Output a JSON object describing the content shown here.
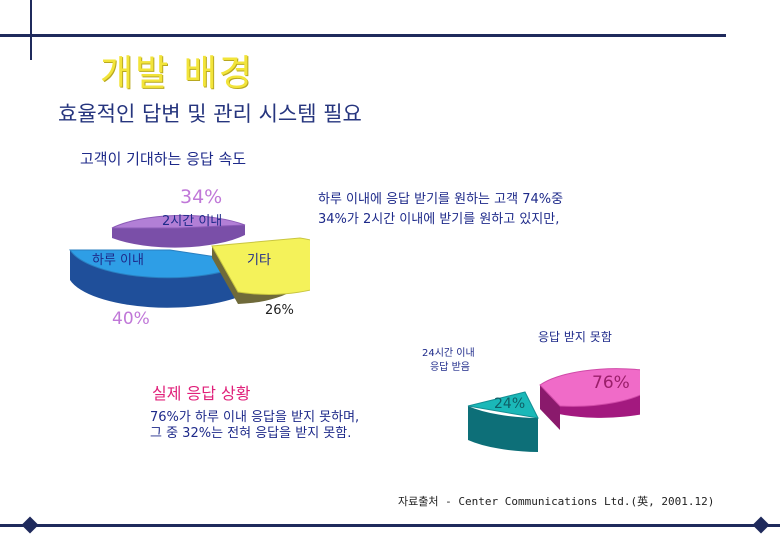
{
  "slide": {
    "title": "개발 배경",
    "subtitle": "효율적인 답변 및 관리 시스템 필요",
    "section1": "고객이 기대하는 응답 속도",
    "note1_line1": "하루 이내에 응답 받기를 원하는 고객 74%중",
    "note1_line2": "34%가 2시간 이내에 받기를 원하고 있지만,",
    "section2": "실제 응답 상황",
    "note2_line1": "76%가 하루 이내 응답을 받지 못하며,",
    "note2_line2": "그 중 32%는 전혀 응답을 받지 못함.",
    "source": "자료출처 - Center Communications Ltd.(英, 2001.12)"
  },
  "colors": {
    "title": "#f2e43a",
    "navy": "#1f2a5c",
    "text_blue": "#1e2a8a",
    "magenta": "#e0207a"
  },
  "chart_data": [
    {
      "type": "pie",
      "title": "고객이 기대하는 응답 속도",
      "style": "3d-exploded",
      "slices": [
        {
          "label": "2시간 이내",
          "value": 34,
          "value_label": "34%",
          "color": "#b27fd6"
        },
        {
          "label": "하루 이내",
          "value": 40,
          "value_label": "40%",
          "color": "#2e9ee6"
        },
        {
          "label": "기타",
          "value": 26,
          "value_label": "26%",
          "color": "#f4f25a"
        }
      ]
    },
    {
      "type": "pie",
      "title": "실제 응답 상황",
      "style": "3d-exploded",
      "slices": [
        {
          "label": "응답 받지 못함",
          "value": 76,
          "value_label": "76%",
          "color": "#f06bc8"
        },
        {
          "label": "24시간 이내 응답 받음",
          "label_line1": "24시간 이내",
          "label_line2": "응답 받음",
          "value": 24,
          "value_label": "24%",
          "color": "#1ab8b8"
        }
      ]
    }
  ]
}
